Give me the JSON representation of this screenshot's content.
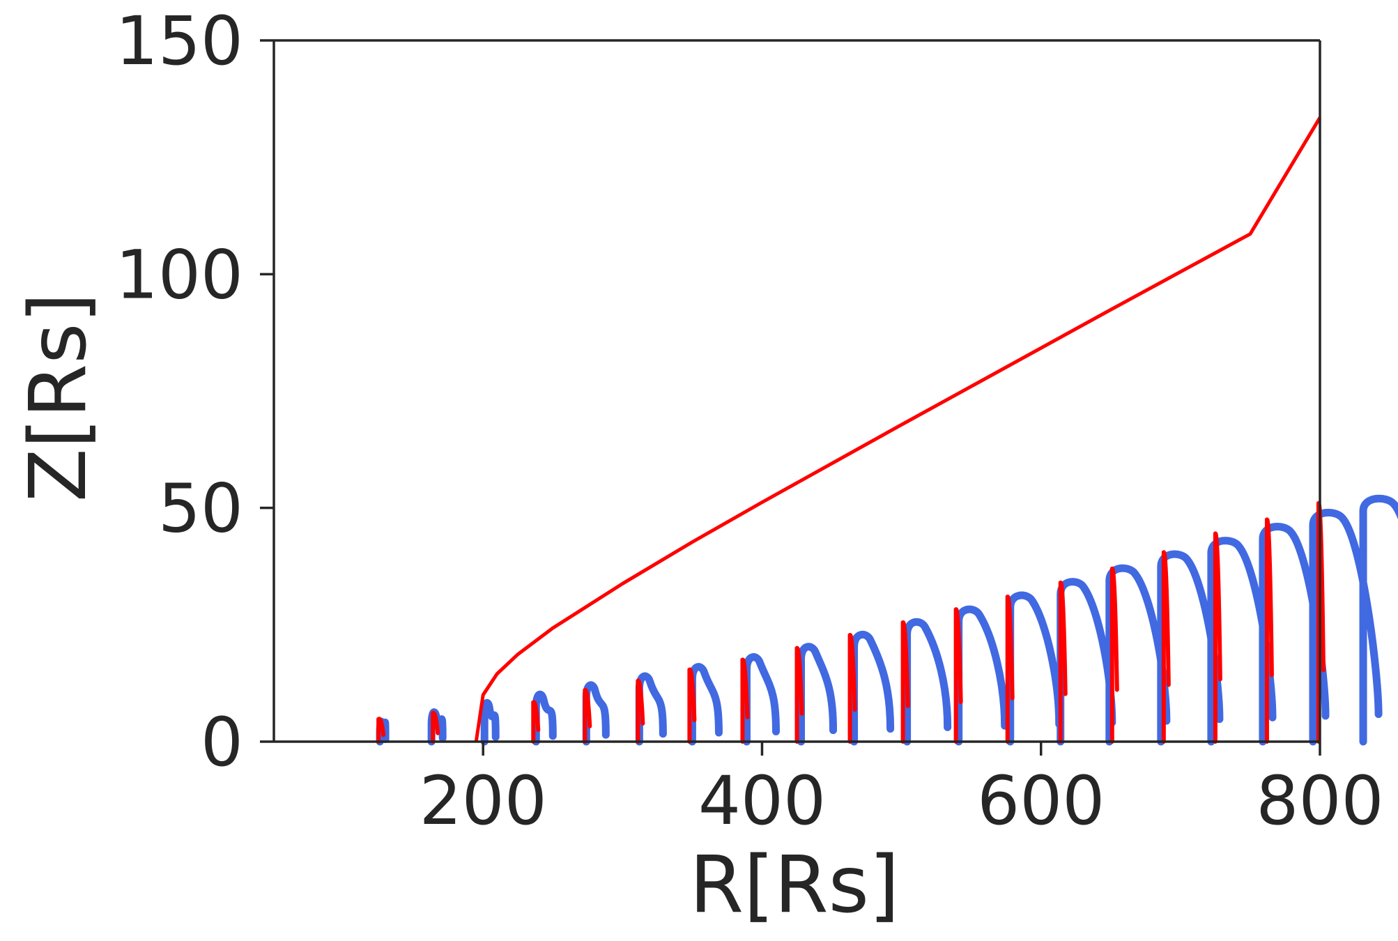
{
  "colors": {
    "fast_series": "#ff0000",
    "bounce_series": "#4169e1",
    "axis": "#262626",
    "background": "#ffffff"
  },
  "chart_data": {
    "type": "line",
    "title": "",
    "xlabel": "R[Rs]",
    "ylabel": "Z[Rs]",
    "xlim": [
      50,
      800
    ],
    "ylim": [
      0,
      150
    ],
    "xticks": [
      200,
      400,
      600,
      800
    ],
    "xtick_labels": [
      "200",
      "400",
      "600",
      "800"
    ],
    "yticks": [
      0,
      50,
      100,
      150
    ],
    "ytick_labels": [
      "0",
      "50",
      "100",
      "150"
    ],
    "grid": false,
    "legend": "none",
    "series": [
      {
        "color": "#ff0000",
        "style": "thin",
        "x": [
          195,
          200,
          210,
          225,
          250,
          300,
          350,
          400,
          450,
          500,
          550,
          600,
          650,
          700,
          750,
          800
        ],
        "y": [
          0,
          10,
          14.5,
          18.7,
          24.3,
          33.8,
          42.7,
          51.2,
          59.5,
          67.8,
          76,
          84.2,
          92.4,
          100.5,
          108.6,
          133.5
        ]
      }
    ],
    "bounce_arcs": [
      {
        "start": 126,
        "end": 130,
        "peak": 4.3
      },
      {
        "start": 163,
        "end": 171,
        "peak": 6.3
      },
      {
        "start": 201,
        "end": 209,
        "peak": 8.3
      },
      {
        "start": 238,
        "end": 250,
        "peak": 10.1
      },
      {
        "start": 274,
        "end": 288,
        "peak": 12.1
      },
      {
        "start": 312,
        "end": 329,
        "peak": 14.0
      },
      {
        "start": 350,
        "end": 369,
        "peak": 16.0
      },
      {
        "start": 389,
        "end": 410,
        "peak": 18.1
      },
      {
        "start": 428,
        "end": 451,
        "peak": 20.3
      },
      {
        "start": 466,
        "end": 492,
        "peak": 22.9
      },
      {
        "start": 504,
        "end": 533,
        "peak": 25.6
      },
      {
        "start": 541,
        "end": 574,
        "peak": 28.3
      },
      {
        "start": 578,
        "end": 613,
        "peak": 31.3
      },
      {
        "start": 614,
        "end": 651,
        "peak": 34.2
      },
      {
        "start": 649,
        "end": 690,
        "peak": 37.1
      },
      {
        "start": 686,
        "end": 728,
        "peak": 40.1
      },
      {
        "start": 722,
        "end": 766,
        "peak": 43.0
      },
      {
        "start": 759,
        "end": 804,
        "peak": 46.0
      },
      {
        "start": 795,
        "end": 842,
        "peak": 49.0
      },
      {
        "start": 831,
        "end": 880,
        "peak": 52.0
      }
    ],
    "bounce_spikes": [
      {
        "x": 127,
        "peak": 4.8
      },
      {
        "x": 166,
        "peak": 6.1
      },
      {
        "x": 238,
        "peak": 8.4
      },
      {
        "x": 275,
        "peak": 11.0
      },
      {
        "x": 313,
        "peak": 13.0
      },
      {
        "x": 350,
        "peak": 15.4
      },
      {
        "x": 388,
        "peak": 17.5
      },
      {
        "x": 427,
        "peak": 20.0
      },
      {
        "x": 465,
        "peak": 22.8
      },
      {
        "x": 503,
        "peak": 25.5
      },
      {
        "x": 541,
        "peak": 28.3
      },
      {
        "x": 578,
        "peak": 31.0
      },
      {
        "x": 616,
        "peak": 34.0
      },
      {
        "x": 653,
        "peak": 37.0
      },
      {
        "x": 690,
        "peak": 40.5
      },
      {
        "x": 727,
        "peak": 44.5
      },
      {
        "x": 764,
        "peak": 47.5
      },
      {
        "x": 801,
        "peak": 51.0
      }
    ]
  }
}
